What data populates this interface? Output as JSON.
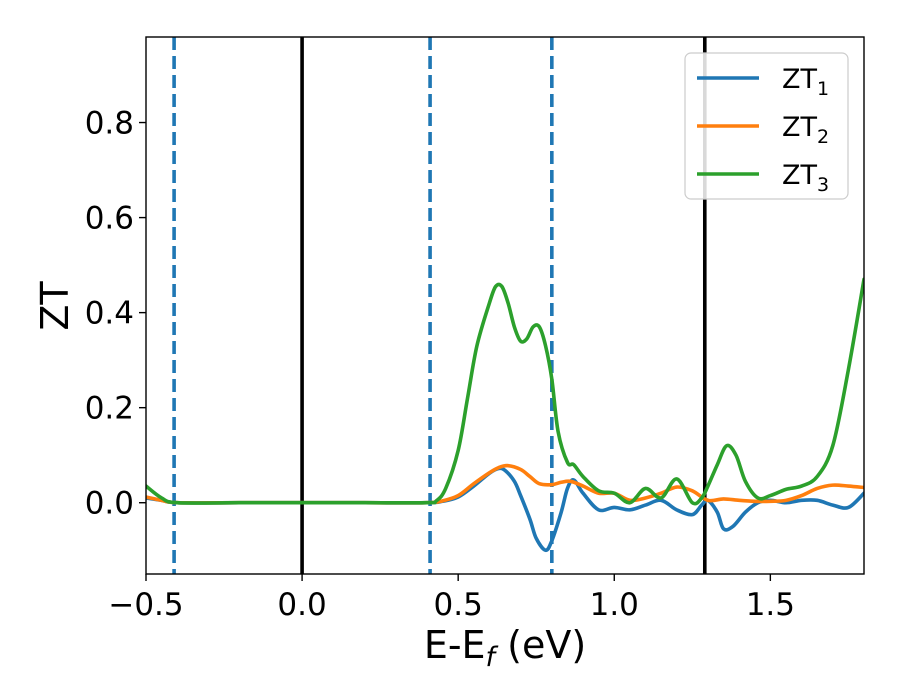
{
  "chart_data": {
    "type": "line",
    "xlabel": {
      "base": "E-E",
      "sub": "f",
      "tail": " (eV)"
    },
    "ylabel": "ZT",
    "xlim": [
      -0.5,
      1.8
    ],
    "ylim": [
      -0.15,
      0.98
    ],
    "xticks": [
      {
        "value": -0.5,
        "label": "−0.5"
      },
      {
        "value": 0.0,
        "label": "0.0"
      },
      {
        "value": 0.5,
        "label": "0.5"
      },
      {
        "value": 1.0,
        "label": "1.0"
      },
      {
        "value": 1.5,
        "label": "1.5"
      }
    ],
    "yticks": [
      {
        "value": 0.0,
        "label": "0.0"
      },
      {
        "value": 0.2,
        "label": "0.2"
      },
      {
        "value": 0.4,
        "label": "0.4"
      },
      {
        "value": 0.6,
        "label": "0.6"
      },
      {
        "value": 0.8,
        "label": "0.8"
      }
    ],
    "grid": false,
    "legend_position": "top-right",
    "vlines": [
      {
        "x": -0.41,
        "style": "dashed",
        "color": "#1f77b4"
      },
      {
        "x": 0.0,
        "style": "solid",
        "color": "#000000"
      },
      {
        "x": 0.41,
        "style": "dashed",
        "color": "#1f77b4"
      },
      {
        "x": 0.8,
        "style": "dashed",
        "color": "#1f77b4"
      },
      {
        "x": 1.29,
        "style": "solid",
        "color": "#000000"
      }
    ],
    "series": [
      {
        "name": "ZT1",
        "label_base": "ZT",
        "label_sub": "1",
        "color": "#1f77b4",
        "x": [
          -0.5,
          -0.45,
          -0.4,
          -0.2,
          0.0,
          0.2,
          0.4,
          0.45,
          0.5,
          0.55,
          0.6,
          0.63,
          0.65,
          0.68,
          0.7,
          0.73,
          0.75,
          0.78,
          0.8,
          0.83,
          0.85,
          0.87,
          0.9,
          0.95,
          1.0,
          1.05,
          1.1,
          1.15,
          1.2,
          1.25,
          1.28,
          1.3,
          1.33,
          1.35,
          1.38,
          1.42,
          1.46,
          1.5,
          1.55,
          1.6,
          1.65,
          1.7,
          1.75,
          1.8
        ],
        "y": [
          0.01,
          0.005,
          0.0,
          0.0,
          0.0,
          0.0,
          0.0,
          0.003,
          0.012,
          0.035,
          0.062,
          0.072,
          0.068,
          0.045,
          0.015,
          -0.035,
          -0.075,
          -0.1,
          -0.08,
          -0.02,
          0.03,
          0.048,
          0.02,
          -0.015,
          -0.01,
          -0.015,
          -0.005,
          0.005,
          -0.015,
          -0.025,
          -0.005,
          0.005,
          -0.02,
          -0.055,
          -0.05,
          -0.02,
          0.0,
          0.005,
          0.0,
          0.005,
          0.005,
          -0.005,
          -0.01,
          0.02
        ]
      },
      {
        "name": "ZT2",
        "label_base": "ZT",
        "label_sub": "2",
        "color": "#ff7f0e",
        "x": [
          -0.5,
          -0.45,
          -0.4,
          -0.2,
          0.0,
          0.2,
          0.4,
          0.45,
          0.5,
          0.55,
          0.6,
          0.63,
          0.66,
          0.7,
          0.73,
          0.76,
          0.8,
          0.83,
          0.86,
          0.9,
          0.95,
          1.0,
          1.05,
          1.1,
          1.15,
          1.2,
          1.25,
          1.3,
          1.35,
          1.4,
          1.45,
          1.5,
          1.55,
          1.6,
          1.65,
          1.7,
          1.75,
          1.8
        ],
        "y": [
          0.012,
          0.005,
          0.0,
          0.0,
          0.0,
          0.0,
          0.0,
          0.004,
          0.015,
          0.04,
          0.063,
          0.074,
          0.078,
          0.07,
          0.055,
          0.04,
          0.038,
          0.043,
          0.045,
          0.035,
          0.02,
          0.02,
          0.005,
          0.01,
          0.02,
          0.033,
          0.025,
          0.005,
          0.008,
          0.005,
          0.003,
          0.003,
          0.005,
          0.015,
          0.03,
          0.037,
          0.035,
          0.032
        ]
      },
      {
        "name": "ZT3",
        "label_base": "ZT",
        "label_sub": "3",
        "color": "#2ca02c",
        "x": [
          -0.5,
          -0.45,
          -0.4,
          -0.2,
          0.0,
          0.2,
          0.4,
          0.43,
          0.46,
          0.5,
          0.53,
          0.56,
          0.6,
          0.62,
          0.64,
          0.66,
          0.68,
          0.7,
          0.72,
          0.74,
          0.76,
          0.78,
          0.8,
          0.82,
          0.85,
          0.87,
          0.9,
          0.95,
          1.0,
          1.05,
          1.1,
          1.15,
          1.2,
          1.25,
          1.28,
          1.3,
          1.33,
          1.36,
          1.39,
          1.42,
          1.46,
          1.5,
          1.55,
          1.6,
          1.65,
          1.7,
          1.75,
          1.8
        ],
        "y": [
          0.035,
          0.01,
          0.0,
          0.0,
          0.0,
          0.0,
          0.0,
          0.004,
          0.03,
          0.11,
          0.22,
          0.33,
          0.42,
          0.455,
          0.455,
          0.42,
          0.37,
          0.34,
          0.345,
          0.37,
          0.37,
          0.33,
          0.26,
          0.15,
          0.085,
          0.08,
          0.055,
          0.025,
          0.02,
          0.0,
          0.03,
          0.01,
          0.05,
          0.0,
          0.01,
          0.035,
          0.08,
          0.12,
          0.1,
          0.045,
          0.01,
          0.015,
          0.028,
          0.035,
          0.055,
          0.12,
          0.28,
          0.47
        ]
      }
    ]
  }
}
